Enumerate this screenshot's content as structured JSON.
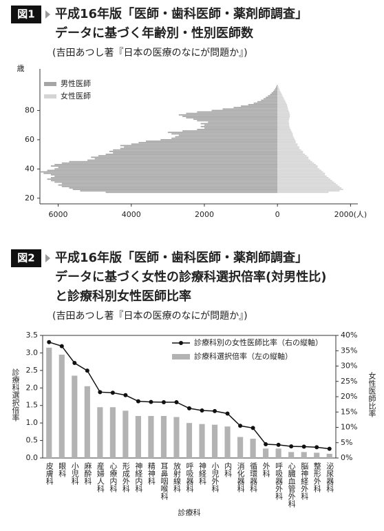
{
  "chart_data": [
    {
      "type": "pyramid",
      "figure_label": "図1",
      "title_lines": [
        "平成16年版「医師・歯科医師・薬剤師調査」",
        "データに基づく年齢別・性別医師数"
      ],
      "subtitle": "(吉田あつし著『日本の医療のなにが問題か』)",
      "y_label": "歳",
      "y": [
        24,
        25,
        26,
        27,
        28,
        29,
        30,
        31,
        32,
        33,
        34,
        35,
        36,
        37,
        38,
        39,
        40,
        41,
        42,
        43,
        44,
        45,
        46,
        47,
        48,
        49,
        50,
        51,
        52,
        53,
        54,
        55,
        56,
        57,
        58,
        59,
        60,
        61,
        62,
        63,
        64,
        65,
        66,
        67,
        68,
        69,
        70,
        71,
        72,
        73,
        74,
        75,
        76,
        77,
        78,
        79,
        80,
        81,
        82,
        83,
        84,
        85,
        86,
        87,
        88,
        89,
        90,
        91,
        92,
        93,
        94,
        95,
        96,
        97
      ],
      "series": [
        {
          "name": "男性医師",
          "color": "#a6a6a6",
          "values": [
            -4700,
            -5400,
            -5600,
            -5700,
            -5900,
            -6000,
            -5900,
            -6100,
            -6200,
            -6300,
            -6200,
            -6100,
            -6200,
            -6400,
            -6500,
            -6300,
            -6100,
            -6000,
            -6200,
            -6100,
            -5900,
            -5700,
            -5200,
            -5000,
            -5100,
            -4900,
            -4700,
            -4500,
            -4600,
            -4500,
            -4300,
            -4200,
            -4300,
            -4000,
            -3800,
            -3600,
            -3200,
            -2900,
            -2800,
            -2700,
            -2900,
            -3000,
            -2600,
            -2200,
            -2000,
            -2100,
            -2000,
            -2100,
            -1900,
            -2200,
            -2300,
            -2500,
            -2600,
            -2700,
            -2500,
            -2200,
            -1800,
            -1500,
            -1200,
            -1000,
            -800,
            -650,
            -550,
            -450,
            -380,
            -320,
            -260,
            -200,
            -160,
            -120,
            -90,
            -60,
            -40,
            -20
          ]
        },
        {
          "name": "女性医師",
          "color": "#d4d4d4",
          "values": [
            1400,
            1700,
            1800,
            1750,
            1700,
            1650,
            1600,
            1550,
            1500,
            1450,
            1400,
            1350,
            1300,
            1300,
            1250,
            1200,
            1150,
            1100,
            1100,
            1050,
            1000,
            950,
            900,
            850,
            850,
            800,
            750,
            700,
            700,
            650,
            600,
            600,
            550,
            550,
            500,
            500,
            480,
            460,
            440,
            420,
            420,
            400,
            380,
            360,
            340,
            330,
            320,
            320,
            310,
            310,
            320,
            330,
            340,
            340,
            330,
            320,
            300,
            290,
            280,
            270,
            260,
            240,
            220,
            200,
            180,
            160,
            140,
            120,
            100,
            80,
            60,
            45,
            30,
            15
          ]
        }
      ],
      "xlim": [
        -6500,
        2200
      ],
      "xticks": [
        {
          "value": -6000,
          "label": "6000"
        },
        {
          "value": -4000,
          "label": "4000"
        },
        {
          "value": -2000,
          "label": "2000"
        },
        0,
        {
          "value": 2000,
          "label": "2000(人)"
        }
      ],
      "ylim": [
        18,
        100
      ],
      "yticks": [
        20,
        40,
        60,
        80
      ],
      "legend": "top-left"
    },
    {
      "type": "bar_line",
      "figure_label": "図2",
      "title_lines": [
        "平成16年版「医師・歯科医師・薬剤師調査」",
        "データに基づく女性の診療科選択倍率(対男性比)",
        "と診療科別女性医師比率"
      ],
      "subtitle": "(吉田あつし著『日本の医療のなにが問題か』)",
      "x_label": "診療科",
      "y_label": "診療科選択倍率",
      "y2_label": "女性医師比率",
      "categories": [
        "皮膚科",
        "眼科",
        "小児科",
        "麻酔科",
        "産婦人科",
        "心療内科",
        "形成外科",
        "神経内科",
        "精神科",
        "耳鼻咽喉科",
        "放射線科",
        "呼吸器科",
        "神経科",
        "小児外科",
        "内科",
        "消化器科",
        "循環器科",
        "外科",
        "呼吸器外科",
        "心臓血管外科",
        "脳神経外科",
        "整形外科",
        "泌尿器科"
      ],
      "series": [
        {
          "name": "診療科別の女性医師比率（右の縦軸）",
          "type": "line",
          "axis": "y2",
          "color": "#111111",
          "values": [
            37.8,
            36.5,
            31,
            28.5,
            21.5,
            21.3,
            20.5,
            18.5,
            18.3,
            18.2,
            18.2,
            16.2,
            15.5,
            15.3,
            14.5,
            10.5,
            9.8,
            4.5,
            4.3,
            3.8,
            3.7,
            3.5,
            3.0
          ]
        },
        {
          "name": "診療科選択倍率（左の縦軸）",
          "type": "bar",
          "axis": "y",
          "color": "#b3b3b3",
          "values": [
            3.15,
            2.95,
            2.35,
            2.05,
            1.45,
            1.45,
            1.35,
            1.2,
            1.2,
            1.2,
            1.17,
            1.0,
            0.97,
            0.95,
            0.9,
            0.6,
            0.55,
            0.27,
            0.27,
            0.17,
            0.17,
            0.15,
            0.12
          ]
        }
      ],
      "ylim": [
        0,
        3.5
      ],
      "yticks": [
        {
          "value": 0,
          "label": "0.0"
        },
        {
          "value": 0.5,
          "label": "0.5"
        },
        {
          "value": 1,
          "label": "1.0"
        },
        {
          "value": 1.5,
          "label": "1.5"
        },
        {
          "value": 2,
          "label": "2.0"
        },
        {
          "value": 2.5,
          "label": "2.5"
        },
        {
          "value": 3,
          "label": "3.0"
        },
        {
          "value": 3.5,
          "label": "3.5"
        }
      ],
      "y2lim": [
        0,
        40
      ],
      "y2ticks": [
        {
          "value": 0,
          "label": "0%"
        },
        {
          "value": 5,
          "label": "5%"
        },
        {
          "value": 10,
          "label": "10%"
        },
        {
          "value": 15,
          "label": "15%"
        },
        {
          "value": 20,
          "label": "20%"
        },
        {
          "value": 25,
          "label": "25%"
        },
        {
          "value": 30,
          "label": "30%"
        },
        {
          "value": 35,
          "label": "35%"
        },
        {
          "value": 40,
          "label": "40%"
        }
      ],
      "legend": "top-right"
    }
  ]
}
